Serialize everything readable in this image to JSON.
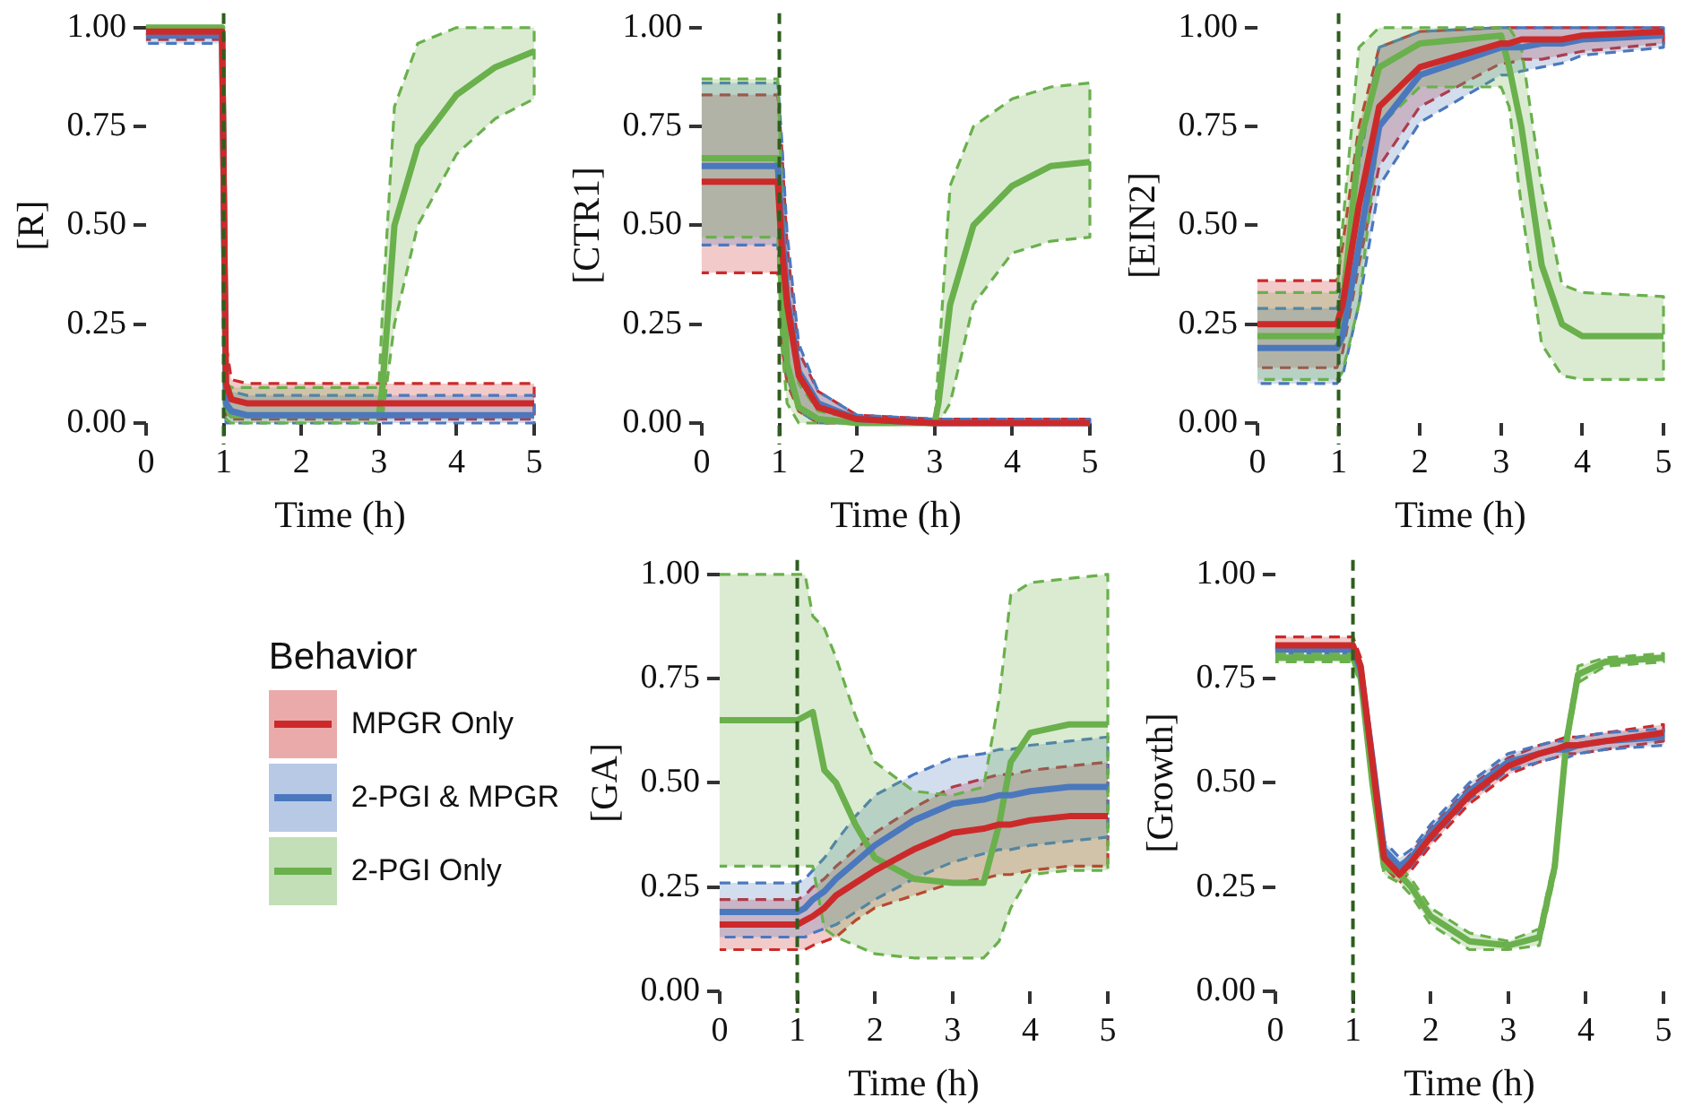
{
  "chart_data": [
    {
      "type": "line",
      "xlabel": "Time (h)",
      "ylabel": "[R]",
      "grid": false,
      "legend": false,
      "marker": "none",
      "xlim": [
        0,
        5
      ],
      "ylim": [
        0,
        1
      ],
      "xticks": [
        0,
        1,
        2,
        3,
        4,
        5
      ],
      "yticks": [
        {
          "value": 0,
          "label": "0.00"
        },
        {
          "value": 0.25,
          "label": "0.25"
        },
        {
          "value": 0.5,
          "label": "0.50"
        },
        {
          "value": 0.75,
          "label": "0.75"
        },
        {
          "value": 1,
          "label": "1.00"
        }
      ],
      "ref_lines": [
        {
          "axis": "x",
          "value": 1,
          "color": "#2e5e1e",
          "line_style": "dashed"
        }
      ],
      "x": [
        0,
        0.98,
        1.03,
        1.1,
        1.3,
        2,
        3,
        3.05,
        3.2,
        3.5,
        4,
        4.5,
        5
      ],
      "series": [
        {
          "color": "#cc2a2a",
          "values": [
            0.99,
            0.99,
            0.1,
            0.06,
            0.05,
            0.05,
            0.05,
            0.05,
            0.05,
            0.05,
            0.05,
            0.05,
            0.05
          ],
          "lower": [
            0.97,
            0.97,
            0.02,
            0.01,
            0.01,
            0.01,
            0.01,
            0.01,
            0.01,
            0.01,
            0.01,
            0.01,
            0.01
          ],
          "upper": [
            1,
            1,
            0.2,
            0.11,
            0.1,
            0.1,
            0.1,
            0.1,
            0.1,
            0.1,
            0.1,
            0.1,
            0.1
          ]
        },
        {
          "color": "#4b78bd",
          "values": [
            0.98,
            0.98,
            0.05,
            0.03,
            0.02,
            0.02,
            0.02,
            0.02,
            0.02,
            0.02,
            0.02,
            0.02,
            0.02
          ],
          "lower": [
            0.96,
            0.96,
            0,
            0,
            0,
            0,
            0,
            0,
            0,
            0,
            0,
            0,
            0
          ],
          "upper": [
            1,
            1,
            0.1,
            0.08,
            0.07,
            0.07,
            0.07,
            0.07,
            0.07,
            0.07,
            0.07,
            0.07,
            0.07
          ]
        },
        {
          "color": "#6ab04c",
          "values": [
            1,
            1,
            0.04,
            0.02,
            0.02,
            0.02,
            0.02,
            0.1,
            0.5,
            0.7,
            0.83,
            0.9,
            0.94
          ],
          "lower": [
            0.98,
            0.98,
            0.01,
            0,
            0,
            0,
            0,
            0.02,
            0.25,
            0.5,
            0.68,
            0.77,
            0.82
          ],
          "upper": [
            1,
            1,
            0.1,
            0.09,
            0.09,
            0.09,
            0.09,
            0.3,
            0.8,
            0.96,
            1,
            1,
            1
          ]
        }
      ]
    },
    {
      "type": "line",
      "xlabel": "Time (h)",
      "ylabel": "[CTR1]",
      "grid": false,
      "legend": false,
      "marker": "none",
      "xlim": [
        0,
        5
      ],
      "ylim": [
        0,
        1
      ],
      "xticks": [
        0,
        1,
        2,
        3,
        4,
        5
      ],
      "yticks": [
        {
          "value": 0,
          "label": "0.00"
        },
        {
          "value": 0.25,
          "label": "0.25"
        },
        {
          "value": 0.5,
          "label": "0.50"
        },
        {
          "value": 0.75,
          "label": "0.75"
        },
        {
          "value": 1,
          "label": "1.00"
        }
      ],
      "ref_lines": [
        {
          "axis": "x",
          "value": 1,
          "color": "#2e5e1e",
          "line_style": "dashed"
        }
      ],
      "x": [
        0,
        0.98,
        1.03,
        1.1,
        1.25,
        1.5,
        2,
        3,
        3.05,
        3.2,
        3.5,
        4,
        4.5,
        5
      ],
      "series": [
        {
          "color": "#cc2a2a",
          "values": [
            0.61,
            0.61,
            0.45,
            0.3,
            0.12,
            0.04,
            0.01,
            0,
            0,
            0,
            0,
            0,
            0,
            0
          ],
          "lower": [
            0.38,
            0.38,
            0.2,
            0.1,
            0.03,
            0,
            0,
            0,
            0,
            0,
            0,
            0,
            0,
            0
          ],
          "upper": [
            0.83,
            0.83,
            0.7,
            0.45,
            0.18,
            0.08,
            0.02,
            0.01,
            0.01,
            0.01,
            0.01,
            0.01,
            0.01,
            0.01
          ]
        },
        {
          "color": "#4b78bd",
          "values": [
            0.65,
            0.65,
            0.5,
            0.32,
            0.13,
            0.05,
            0.01,
            0,
            0,
            0,
            0,
            0,
            0,
            0
          ],
          "lower": [
            0.45,
            0.45,
            0.25,
            0.12,
            0.03,
            0,
            0,
            0,
            0,
            0,
            0,
            0,
            0,
            0
          ],
          "upper": [
            0.86,
            0.86,
            0.72,
            0.48,
            0.2,
            0.08,
            0.02,
            0.01,
            0.01,
            0.01,
            0.01,
            0.01,
            0.01,
            0.01
          ]
        },
        {
          "color": "#6ab04c",
          "values": [
            0.67,
            0.67,
            0.4,
            0.15,
            0.04,
            0.01,
            0,
            0,
            0.05,
            0.3,
            0.5,
            0.6,
            0.65,
            0.66
          ],
          "lower": [
            0.47,
            0.47,
            0.2,
            0.05,
            0,
            0,
            0,
            0,
            0,
            0.05,
            0.3,
            0.43,
            0.46,
            0.47
          ],
          "upper": [
            0.87,
            0.87,
            0.6,
            0.3,
            0.1,
            0.03,
            0.01,
            0,
            0.15,
            0.6,
            0.75,
            0.82,
            0.85,
            0.86
          ]
        }
      ]
    },
    {
      "type": "line",
      "xlabel": "Time (h)",
      "ylabel": "[EIN2]",
      "grid": false,
      "legend": false,
      "marker": "none",
      "xlim": [
        0,
        5
      ],
      "ylim": [
        0,
        1
      ],
      "xticks": [
        0,
        1,
        2,
        3,
        4,
        5
      ],
      "yticks": [
        {
          "value": 0,
          "label": "0.00"
        },
        {
          "value": 0.25,
          "label": "0.25"
        },
        {
          "value": 0.5,
          "label": "0.50"
        },
        {
          "value": 0.75,
          "label": "0.75"
        },
        {
          "value": 1,
          "label": "1.00"
        }
      ],
      "ref_lines": [
        {
          "axis": "x",
          "value": 1,
          "color": "#2e5e1e",
          "line_style": "dashed"
        }
      ],
      "x": [
        0,
        0.98,
        1.05,
        1.25,
        1.5,
        2,
        3,
        3.1,
        3.25,
        3.5,
        3.75,
        4,
        5
      ],
      "series": [
        {
          "color": "#cc2a2a",
          "values": [
            0.25,
            0.25,
            0.3,
            0.55,
            0.8,
            0.9,
            0.96,
            0.96,
            0.97,
            0.97,
            0.97,
            0.98,
            0.99
          ],
          "lower": [
            0.14,
            0.14,
            0.18,
            0.4,
            0.65,
            0.8,
            0.91,
            0.91,
            0.92,
            0.92,
            0.93,
            0.94,
            0.96
          ],
          "upper": [
            0.36,
            0.36,
            0.45,
            0.75,
            0.95,
            0.99,
            1,
            1,
            1,
            1,
            1,
            1,
            1
          ]
        },
        {
          "color": "#4b78bd",
          "values": [
            0.19,
            0.19,
            0.22,
            0.45,
            0.75,
            0.88,
            0.95,
            0.95,
            0.95,
            0.96,
            0.96,
            0.97,
            0.98
          ],
          "lower": [
            0.1,
            0.1,
            0.12,
            0.3,
            0.6,
            0.76,
            0.88,
            0.88,
            0.89,
            0.9,
            0.91,
            0.93,
            0.95
          ],
          "upper": [
            0.29,
            0.29,
            0.35,
            0.65,
            0.95,
            0.99,
            1,
            1,
            1,
            1,
            1,
            1,
            1
          ]
        },
        {
          "color": "#6ab04c",
          "values": [
            0.22,
            0.22,
            0.3,
            0.7,
            0.9,
            0.96,
            0.98,
            0.9,
            0.75,
            0.4,
            0.25,
            0.22,
            0.22
          ],
          "lower": [
            0.11,
            0.11,
            0.13,
            0.3,
            0.75,
            0.85,
            0.85,
            0.8,
            0.55,
            0.2,
            0.12,
            0.11,
            0.11
          ],
          "upper": [
            0.33,
            0.33,
            0.5,
            0.95,
            1,
            1,
            1,
            1,
            0.95,
            0.6,
            0.35,
            0.33,
            0.32
          ]
        }
      ]
    },
    {
      "type": "line",
      "xlabel": "Time (h)",
      "ylabel": "[GA]",
      "grid": false,
      "legend": "left",
      "legend_title": "Behavior",
      "marker": "none",
      "xlim": [
        0,
        5
      ],
      "ylim": [
        0,
        1
      ],
      "xticks": [
        0,
        1,
        2,
        3,
        4,
        5
      ],
      "yticks": [
        {
          "value": 0,
          "label": "0.00"
        },
        {
          "value": 0.25,
          "label": "0.25"
        },
        {
          "value": 0.5,
          "label": "0.50"
        },
        {
          "value": 0.75,
          "label": "0.75"
        },
        {
          "value": 1,
          "label": "1.00"
        }
      ],
      "ref_lines": [
        {
          "axis": "x",
          "value": 1,
          "color": "#2e5e1e",
          "line_style": "dashed"
        }
      ],
      "x": [
        0,
        1,
        1.1,
        1.2,
        1.35,
        1.5,
        1.75,
        2,
        2.5,
        3,
        3.4,
        3.6,
        3.75,
        4,
        4.5,
        5
      ],
      "series": [
        {
          "name": "MPGR Only",
          "color": "#cc2a2a",
          "values": [
            0.16,
            0.16,
            0.17,
            0.18,
            0.2,
            0.23,
            0.26,
            0.29,
            0.34,
            0.38,
            0.39,
            0.4,
            0.4,
            0.41,
            0.42,
            0.42
          ],
          "lower": [
            0.1,
            0.1,
            0.1,
            0.11,
            0.12,
            0.13,
            0.17,
            0.2,
            0.23,
            0.26,
            0.27,
            0.28,
            0.28,
            0.29,
            0.3,
            0.3
          ],
          "upper": [
            0.22,
            0.22,
            0.23,
            0.25,
            0.27,
            0.3,
            0.34,
            0.38,
            0.44,
            0.49,
            0.51,
            0.52,
            0.52,
            0.53,
            0.54,
            0.55
          ]
        },
        {
          "name": "2-PGI & MPGR",
          "color": "#4b78bd",
          "values": [
            0.19,
            0.19,
            0.2,
            0.22,
            0.24,
            0.27,
            0.31,
            0.35,
            0.41,
            0.45,
            0.46,
            0.47,
            0.47,
            0.48,
            0.49,
            0.49
          ],
          "lower": [
            0.13,
            0.13,
            0.13,
            0.14,
            0.15,
            0.16,
            0.19,
            0.22,
            0.27,
            0.31,
            0.33,
            0.34,
            0.34,
            0.35,
            0.36,
            0.37
          ],
          "upper": [
            0.26,
            0.26,
            0.27,
            0.29,
            0.32,
            0.36,
            0.42,
            0.47,
            0.52,
            0.56,
            0.57,
            0.58,
            0.58,
            0.59,
            0.6,
            0.61
          ]
        },
        {
          "name": "2-PGI Only",
          "color": "#6ab04c",
          "values": [
            0.65,
            0.65,
            0.66,
            0.67,
            0.53,
            0.5,
            0.4,
            0.32,
            0.27,
            0.26,
            0.26,
            0.4,
            0.55,
            0.62,
            0.64,
            0.64
          ],
          "lower": [
            0.3,
            0.3,
            0.3,
            0.3,
            0.15,
            0.13,
            0.11,
            0.09,
            0.08,
            0.08,
            0.08,
            0.12,
            0.2,
            0.28,
            0.29,
            0.29
          ],
          "upper": [
            1,
            1,
            1,
            0.9,
            0.87,
            0.8,
            0.66,
            0.55,
            0.48,
            0.47,
            0.49,
            0.7,
            0.95,
            0.98,
            0.99,
            1
          ]
        }
      ]
    },
    {
      "type": "line",
      "xlabel": "Time (h)",
      "ylabel": "[Growth]",
      "grid": false,
      "legend": false,
      "marker": "none",
      "xlim": [
        0,
        5
      ],
      "ylim": [
        0,
        1
      ],
      "xticks": [
        0,
        1,
        2,
        3,
        4,
        5
      ],
      "yticks": [
        {
          "value": 0,
          "label": "0.00"
        },
        {
          "value": 0.25,
          "label": "0.25"
        },
        {
          "value": 0.5,
          "label": "0.50"
        },
        {
          "value": 0.75,
          "label": "0.75"
        },
        {
          "value": 1,
          "label": "1.00"
        }
      ],
      "ref_lines": [
        {
          "axis": "x",
          "value": 1,
          "color": "#2e5e1e",
          "line_style": "dashed"
        }
      ],
      "x": [
        0,
        1,
        1.1,
        1.25,
        1.4,
        1.6,
        1.75,
        2,
        2.5,
        3,
        3.4,
        3.6,
        3.75,
        3.9,
        4.25,
        5
      ],
      "series": [
        {
          "color": "#cc2a2a",
          "values": [
            0.83,
            0.83,
            0.78,
            0.55,
            0.32,
            0.28,
            0.31,
            0.37,
            0.47,
            0.54,
            0.57,
            0.58,
            0.59,
            0.59,
            0.6,
            0.62
          ],
          "lower": [
            0.82,
            0.82,
            0.76,
            0.53,
            0.3,
            0.26,
            0.29,
            0.35,
            0.45,
            0.52,
            0.55,
            0.56,
            0.57,
            0.57,
            0.58,
            0.6
          ],
          "upper": [
            0.85,
            0.85,
            0.8,
            0.57,
            0.34,
            0.3,
            0.33,
            0.39,
            0.49,
            0.56,
            0.59,
            0.6,
            0.61,
            0.61,
            0.62,
            0.64
          ]
        },
        {
          "color": "#4b78bd",
          "values": [
            0.82,
            0.82,
            0.77,
            0.56,
            0.34,
            0.3,
            0.32,
            0.38,
            0.48,
            0.55,
            0.57,
            0.58,
            0.58,
            0.59,
            0.6,
            0.61
          ],
          "lower": [
            0.81,
            0.81,
            0.75,
            0.54,
            0.32,
            0.28,
            0.3,
            0.36,
            0.46,
            0.53,
            0.55,
            0.56,
            0.56,
            0.57,
            0.58,
            0.59
          ],
          "upper": [
            0.83,
            0.83,
            0.79,
            0.58,
            0.36,
            0.32,
            0.34,
            0.4,
            0.5,
            0.57,
            0.59,
            0.6,
            0.6,
            0.61,
            0.62,
            0.63
          ]
        },
        {
          "color": "#6ab04c",
          "values": [
            0.8,
            0.8,
            0.75,
            0.5,
            0.3,
            0.28,
            0.25,
            0.18,
            0.12,
            0.11,
            0.13,
            0.3,
            0.6,
            0.76,
            0.79,
            0.8
          ],
          "lower": [
            0.79,
            0.79,
            0.73,
            0.48,
            0.28,
            0.26,
            0.23,
            0.16,
            0.1,
            0.1,
            0.11,
            0.28,
            0.58,
            0.74,
            0.78,
            0.79
          ],
          "upper": [
            0.81,
            0.81,
            0.77,
            0.52,
            0.32,
            0.3,
            0.27,
            0.2,
            0.14,
            0.12,
            0.15,
            0.32,
            0.62,
            0.78,
            0.8,
            0.81
          ]
        }
      ]
    }
  ]
}
